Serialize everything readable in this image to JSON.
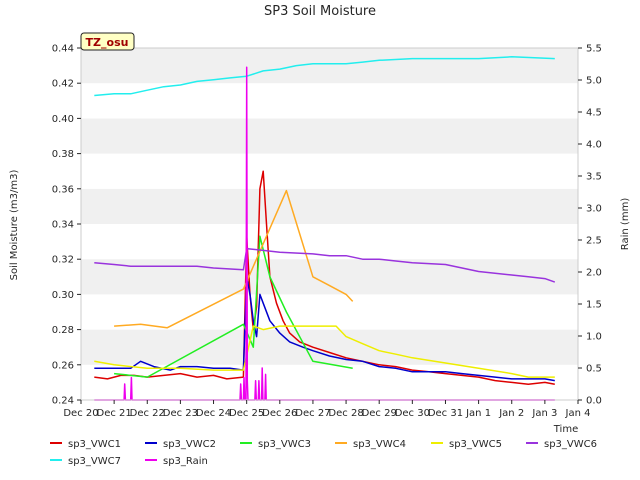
{
  "chart_data": {
    "type": "line",
    "title": "SP3 Soil Moisture",
    "badge": "TZ_osu",
    "ylabel": "Soil Moisture (m3/m3)",
    "y2label": "Rain (mm)",
    "xlabel": "Time",
    "x_ticks": [
      "Dec 20",
      "Dec 21",
      "Dec 22",
      "Dec 23",
      "Dec 24",
      "Dec 25",
      "Dec 26",
      "Dec 27",
      "Dec 28",
      "Dec 29",
      "Dec 30",
      "Dec 31",
      "Jan 1",
      "Jan 2",
      "Jan 3",
      "Jan 4"
    ],
    "xlim": [
      0,
      15
    ],
    "ylim": [
      0.24,
      0.44
    ],
    "y_ticks": [
      "0.24",
      "0.26",
      "0.28",
      "0.30",
      "0.32",
      "0.34",
      "0.36",
      "0.38",
      "0.40",
      "0.42",
      "0.44"
    ],
    "y2lim": [
      0,
      5.5
    ],
    "y2_ticks": [
      "0.0",
      "0.5",
      "1.0",
      "1.5",
      "2.0",
      "2.5",
      "3.0",
      "3.5",
      "4.0",
      "4.5",
      "5.0",
      "5.5"
    ],
    "grid": "horizontal bands",
    "legend_position": "bottom",
    "series": [
      {
        "name": "sp3_VWC1",
        "color": "#dd0000",
        "axis": "left",
        "points": [
          [
            0.4,
            0.253
          ],
          [
            0.8,
            0.252
          ],
          [
            1.2,
            0.254
          ],
          [
            1.6,
            0.254
          ],
          [
            2.0,
            0.253
          ],
          [
            2.5,
            0.254
          ],
          [
            3.0,
            0.255
          ],
          [
            3.5,
            0.253
          ],
          [
            4.0,
            0.254
          ],
          [
            4.4,
            0.252
          ],
          [
            4.9,
            0.253
          ],
          [
            5.0,
            0.333
          ],
          [
            5.1,
            0.3
          ],
          [
            5.2,
            0.28
          ],
          [
            5.3,
            0.293
          ],
          [
            5.4,
            0.36
          ],
          [
            5.5,
            0.37
          ],
          [
            5.6,
            0.34
          ],
          [
            5.7,
            0.31
          ],
          [
            5.9,
            0.295
          ],
          [
            6.1,
            0.285
          ],
          [
            6.3,
            0.278
          ],
          [
            6.6,
            0.273
          ],
          [
            7.0,
            0.27
          ],
          [
            7.5,
            0.267
          ],
          [
            8.0,
            0.264
          ],
          [
            8.5,
            0.262
          ],
          [
            9.0,
            0.26
          ],
          [
            9.5,
            0.259
          ],
          [
            10.0,
            0.257
          ],
          [
            10.5,
            0.256
          ],
          [
            11.0,
            0.255
          ],
          [
            11.5,
            0.254
          ],
          [
            12.0,
            0.253
          ],
          [
            12.5,
            0.251
          ],
          [
            13.0,
            0.25
          ],
          [
            13.5,
            0.249
          ],
          [
            14.0,
            0.25
          ],
          [
            14.3,
            0.249
          ]
        ]
      },
      {
        "name": "sp3_VWC2",
        "color": "#0000cc",
        "axis": "left",
        "points": [
          [
            0.4,
            0.258
          ],
          [
            1.0,
            0.258
          ],
          [
            1.5,
            0.258
          ],
          [
            1.8,
            0.262
          ],
          [
            2.2,
            0.259
          ],
          [
            2.7,
            0.257
          ],
          [
            3.0,
            0.259
          ],
          [
            3.5,
            0.259
          ],
          [
            4.0,
            0.258
          ],
          [
            4.5,
            0.258
          ],
          [
            4.9,
            0.257
          ],
          [
            5.0,
            0.31
          ],
          [
            5.1,
            0.3
          ],
          [
            5.2,
            0.285
          ],
          [
            5.3,
            0.276
          ],
          [
            5.4,
            0.3
          ],
          [
            5.5,
            0.295
          ],
          [
            5.7,
            0.285
          ],
          [
            6.0,
            0.278
          ],
          [
            6.3,
            0.273
          ],
          [
            6.7,
            0.27
          ],
          [
            7.0,
            0.268
          ],
          [
            7.5,
            0.265
          ],
          [
            8.0,
            0.263
          ],
          [
            8.5,
            0.262
          ],
          [
            9.0,
            0.259
          ],
          [
            9.5,
            0.258
          ],
          [
            10.0,
            0.256
          ],
          [
            10.5,
            0.256
          ],
          [
            11.0,
            0.256
          ],
          [
            11.5,
            0.255
          ],
          [
            12.0,
            0.254
          ],
          [
            12.5,
            0.253
          ],
          [
            13.0,
            0.252
          ],
          [
            13.5,
            0.252
          ],
          [
            14.0,
            0.252
          ],
          [
            14.3,
            0.251
          ]
        ]
      },
      {
        "name": "sp3_VWC3",
        "color": "#22ee22",
        "axis": "left",
        "points": [
          [
            1.0,
            0.255
          ],
          [
            2.0,
            0.253
          ],
          [
            4.9,
            0.283
          ],
          [
            5.2,
            0.27
          ],
          [
            5.4,
            0.333
          ],
          [
            5.7,
            0.31
          ],
          [
            6.2,
            0.29
          ],
          [
            7.0,
            0.262
          ],
          [
            8.2,
            0.258
          ]
        ]
      },
      {
        "name": "sp3_VWC4",
        "color": "#ffaa22",
        "axis": "left",
        "points": [
          [
            1.0,
            0.282
          ],
          [
            1.8,
            0.283
          ],
          [
            2.6,
            0.281
          ],
          [
            4.9,
            0.303
          ],
          [
            6.2,
            0.359
          ],
          [
            7.0,
            0.31
          ],
          [
            7.5,
            0.305
          ],
          [
            8.0,
            0.3
          ],
          [
            8.2,
            0.296
          ]
        ]
      },
      {
        "name": "sp3_VWC5",
        "color": "#eeee00",
        "axis": "left",
        "points": [
          [
            0.4,
            0.262
          ],
          [
            1.0,
            0.26
          ],
          [
            2.0,
            0.258
          ],
          [
            3.0,
            0.258
          ],
          [
            4.0,
            0.257
          ],
          [
            4.9,
            0.257
          ],
          [
            5.2,
            0.282
          ],
          [
            5.5,
            0.28
          ],
          [
            6.0,
            0.282
          ],
          [
            7.0,
            0.282
          ],
          [
            7.7,
            0.282
          ],
          [
            8.0,
            0.276
          ],
          [
            8.5,
            0.272
          ],
          [
            9.0,
            0.268
          ],
          [
            9.5,
            0.266
          ],
          [
            10.0,
            0.264
          ],
          [
            11.0,
            0.261
          ],
          [
            12.0,
            0.258
          ],
          [
            13.0,
            0.255
          ],
          [
            13.5,
            0.253
          ],
          [
            14.3,
            0.253
          ]
        ]
      },
      {
        "name": "sp3_VWC6",
        "color": "#9933dd",
        "axis": "left",
        "points": [
          [
            0.4,
            0.318
          ],
          [
            1.0,
            0.317
          ],
          [
            1.5,
            0.316
          ],
          [
            2.5,
            0.316
          ],
          [
            3.5,
            0.316
          ],
          [
            4.0,
            0.315
          ],
          [
            4.9,
            0.314
          ],
          [
            5.0,
            0.326
          ],
          [
            5.5,
            0.325
          ],
          [
            6.0,
            0.324
          ],
          [
            7.0,
            0.323
          ],
          [
            7.5,
            0.322
          ],
          [
            8.0,
            0.322
          ],
          [
            8.5,
            0.32
          ],
          [
            9.0,
            0.32
          ],
          [
            9.5,
            0.319
          ],
          [
            10.0,
            0.318
          ],
          [
            11.0,
            0.317
          ],
          [
            12.0,
            0.313
          ],
          [
            13.0,
            0.311
          ],
          [
            13.5,
            0.31
          ],
          [
            14.0,
            0.309
          ],
          [
            14.3,
            0.307
          ]
        ]
      },
      {
        "name": "sp3_VWC7",
        "color": "#22eeee",
        "axis": "left",
        "points": [
          [
            0.4,
            0.413
          ],
          [
            1.0,
            0.414
          ],
          [
            1.5,
            0.414
          ],
          [
            2.0,
            0.416
          ],
          [
            2.5,
            0.418
          ],
          [
            3.0,
            0.419
          ],
          [
            3.5,
            0.421
          ],
          [
            4.0,
            0.422
          ],
          [
            4.5,
            0.423
          ],
          [
            5.0,
            0.424
          ],
          [
            5.5,
            0.427
          ],
          [
            6.0,
            0.428
          ],
          [
            6.5,
            0.43
          ],
          [
            7.0,
            0.431
          ],
          [
            8.0,
            0.431
          ],
          [
            8.5,
            0.432
          ],
          [
            9.0,
            0.433
          ],
          [
            10.0,
            0.434
          ],
          [
            11.0,
            0.434
          ],
          [
            12.0,
            0.434
          ],
          [
            13.0,
            0.435
          ],
          [
            14.3,
            0.434
          ]
        ]
      },
      {
        "name": "sp3_Rain",
        "color": "#ee00ee",
        "axis": "right",
        "points": [
          [
            0.4,
            0
          ],
          [
            1.3,
            0
          ],
          [
            1.32,
            0.25
          ],
          [
            1.34,
            0
          ],
          [
            1.5,
            0
          ],
          [
            1.52,
            0.35
          ],
          [
            1.54,
            0
          ],
          [
            4.8,
            0
          ],
          [
            4.82,
            0.25
          ],
          [
            4.84,
            0
          ],
          [
            4.9,
            0
          ],
          [
            4.92,
            0.35
          ],
          [
            4.94,
            0
          ],
          [
            4.98,
            0
          ],
          [
            5.0,
            5.2
          ],
          [
            5.02,
            0.3
          ],
          [
            5.04,
            0
          ],
          [
            5.25,
            0
          ],
          [
            5.27,
            0.3
          ],
          [
            5.29,
            0
          ],
          [
            5.35,
            0
          ],
          [
            5.37,
            0.3
          ],
          [
            5.39,
            0
          ],
          [
            5.45,
            0
          ],
          [
            5.47,
            0.5
          ],
          [
            5.49,
            0
          ],
          [
            5.55,
            0
          ],
          [
            5.57,
            0.4
          ],
          [
            5.59,
            0
          ],
          [
            14.3,
            0
          ]
        ]
      }
    ]
  }
}
